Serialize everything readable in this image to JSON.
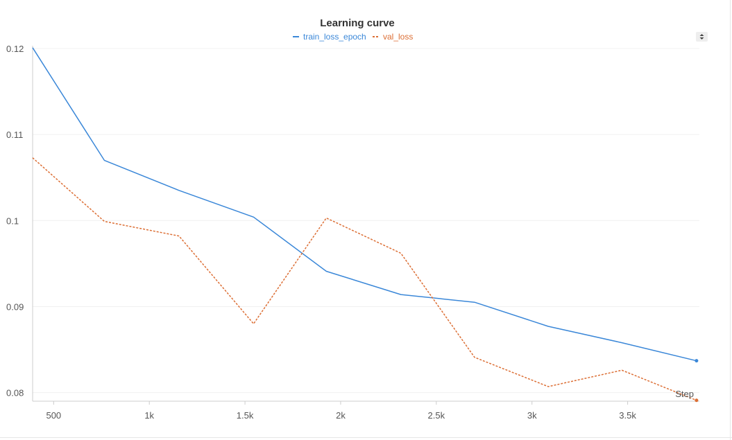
{
  "chart_data": {
    "type": "line",
    "title": "Learning curve",
    "xlabel": "Step",
    "ylabel": "",
    "xlim": [
      390,
      3875
    ],
    "ylim": [
      0.079,
      0.12
    ],
    "x_ticks": [
      500,
      1000,
      1500,
      2000,
      2500,
      3000,
      3500
    ],
    "x_tick_labels": [
      "500",
      "1k",
      "1.5k",
      "2k",
      "2.5k",
      "3k",
      "3.5k"
    ],
    "y_ticks": [
      0.08,
      0.09,
      0.1,
      0.11,
      0.12
    ],
    "y_tick_labels": [
      "0.08",
      "0.09",
      "0.1",
      "0.11",
      "0.12"
    ],
    "grid": true,
    "legend_position": "top-center",
    "series": [
      {
        "name": "train_loss_epoch",
        "color": "#3a87d8",
        "style": "solid",
        "end_marker": true,
        "x": [
          390,
          765,
          1155,
          1545,
          1925,
          2315,
          2700,
          3085,
          3470,
          3860
        ],
        "y": [
          0.1201,
          0.107,
          0.1035,
          0.1004,
          0.0941,
          0.0914,
          0.0905,
          0.0877,
          0.0858,
          0.0837
        ]
      },
      {
        "name": "val_loss",
        "color": "#dc6e34",
        "style": "dashed",
        "end_marker": true,
        "x": [
          390,
          765,
          1155,
          1545,
          1925,
          2315,
          2700,
          3085,
          3470,
          3860
        ],
        "y": [
          0.1073,
          0.0999,
          0.0982,
          0.088,
          0.1003,
          0.0962,
          0.0841,
          0.0807,
          0.0826,
          0.0791
        ]
      }
    ]
  },
  "controls": {
    "legend_toggle_icon": "sort-arrows-icon"
  }
}
